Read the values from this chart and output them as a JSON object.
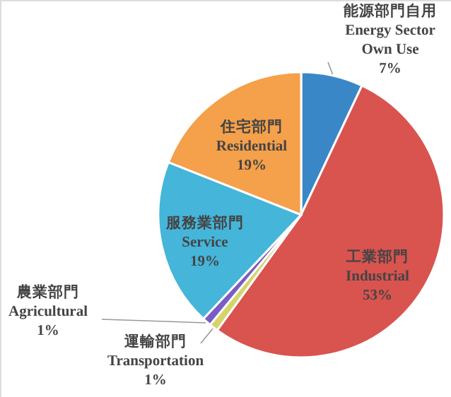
{
  "chart_data": {
    "type": "pie",
    "categories": [
      "能源部門自用\nEnergy Sector\nOwn Use",
      "工業部門\nIndustrial",
      "運輸部門\nTransportation",
      "農業部門\nAgricultural",
      "服務業部門\nService",
      "住宅部門\nResidential"
    ],
    "values": [
      7,
      53,
      1,
      1,
      19,
      19
    ],
    "value_labels": [
      "7%",
      "53%",
      "1%",
      "1%",
      "19%",
      "19%"
    ],
    "colors": [
      "#3a87c8",
      "#d9534f",
      "#d4d46a",
      "#7a5cc4",
      "#45b5d9",
      "#f5a04a"
    ]
  }
}
